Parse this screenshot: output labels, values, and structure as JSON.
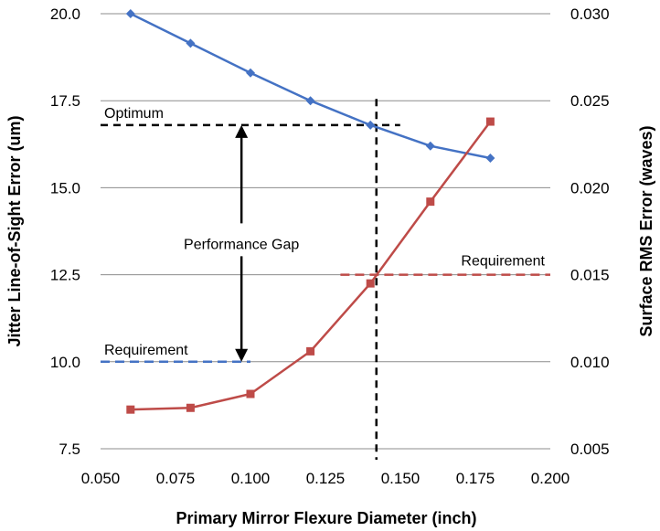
{
  "chart_data": {
    "type": "line",
    "xlabel": "Primary Mirror Flexure Diameter (inch)",
    "ylabel_left": "Jitter Line-of-Sight Error (um)",
    "ylabel_right": "Surface RMS Error (waves)",
    "xlim": [
      0.05,
      0.2
    ],
    "xticks": [
      "0.050",
      "0.075",
      "0.100",
      "0.125",
      "0.150",
      "0.175",
      "0.200"
    ],
    "ylim_left": [
      7.5,
      20.0
    ],
    "yticks_left": [
      "7.5",
      "10.0",
      "12.5",
      "15.0",
      "17.5",
      "20.0"
    ],
    "ylim_right": [
      0.005,
      0.03
    ],
    "yticks_right": [
      "0.005",
      "0.010",
      "0.015",
      "0.020",
      "0.025",
      "0.030"
    ],
    "grid": "horizontal",
    "series": [
      {
        "axis": "left",
        "color": "#4472C4",
        "marker": "diamond",
        "x": [
          0.06,
          0.08,
          0.1,
          0.12,
          0.14,
          0.16,
          0.18
        ],
        "y": [
          20.0,
          19.15,
          18.3,
          17.5,
          16.8,
          16.2,
          15.85
        ]
      },
      {
        "axis": "right",
        "color": "#BE4B48",
        "marker": "square",
        "x": [
          0.06,
          0.08,
          0.1,
          0.12,
          0.14,
          0.16,
          0.18
        ],
        "y": [
          0.00725,
          0.00735,
          0.00815,
          0.0106,
          0.0145,
          0.0192,
          0.0238
        ]
      }
    ],
    "annotations": {
      "optimum": {
        "label": "Optimum",
        "y_left": 16.8,
        "x": 0.142
      },
      "requirement_left": {
        "label": "Requirement",
        "y_left": 10.0,
        "x_range": [
          0.05,
          0.1
        ],
        "color": "#4472C4"
      },
      "requirement_right": {
        "label": "Requirement",
        "y_right": 0.015,
        "x_range": [
          0.13,
          0.2
        ],
        "color": "#BE4B48"
      },
      "performance_gap": {
        "label": "Performance Gap",
        "x": 0.097,
        "y_from": 16.8,
        "y_to": 10.0
      }
    }
  }
}
